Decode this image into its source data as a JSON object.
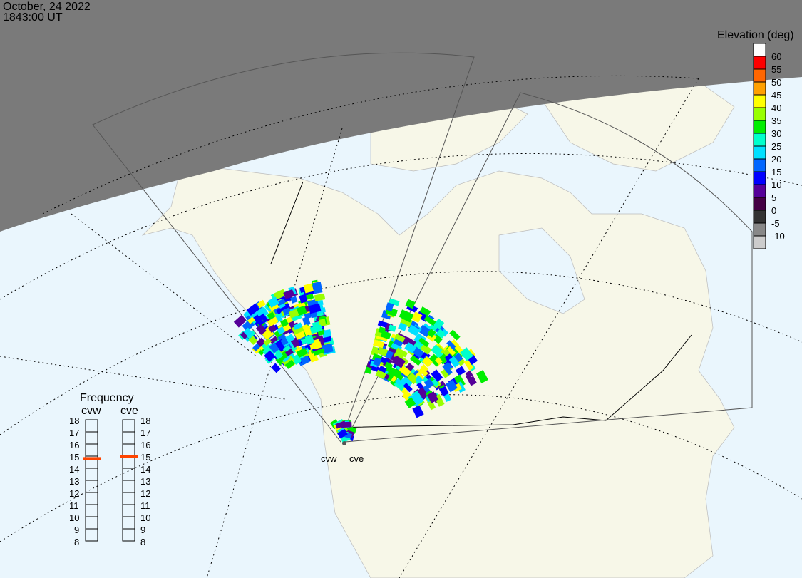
{
  "header": {
    "date": "October, 24 2022",
    "time": "1843:00 UT"
  },
  "legend": {
    "title": "Elevation (deg)",
    "labels": [
      "60",
      "55",
      "50",
      "45",
      "40",
      "35",
      "30",
      "25",
      "20",
      "15",
      "10",
      "5",
      "0",
      "-5",
      "-10"
    ],
    "colors": [
      "#ffffff",
      "#ff0000",
      "#ff6600",
      "#ffa000",
      "#ffff00",
      "#99ff00",
      "#00ee00",
      "#00ffcc",
      "#00e0ff",
      "#0066ff",
      "#0000ff",
      "#550099",
      "#440044",
      "#333333",
      "#888888",
      "#cccccc"
    ]
  },
  "frequency": {
    "title": "Frequency",
    "unit_ticks": [
      "18",
      "17",
      "16",
      "15",
      "14",
      "13",
      "12",
      "11",
      "10",
      "9",
      "8"
    ],
    "radars": [
      {
        "name": "cvw",
        "value_mhz": 14.8
      },
      {
        "name": "cve",
        "value_mhz": 15.0
      }
    ],
    "marker_color": "#ff4400"
  },
  "map": {
    "radar_labels": [
      "cvw",
      "cve"
    ],
    "night_color": "#7a7a7a",
    "ocean_color": "#eaf6fd",
    "land_color": "#f7f7e8"
  }
}
